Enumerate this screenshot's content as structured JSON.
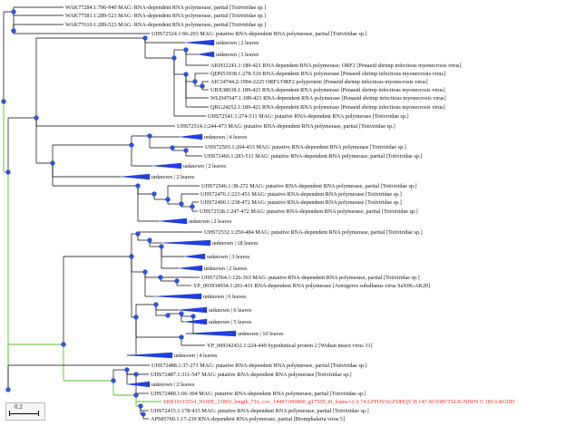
{
  "tree": {
    "colors": {
      "branch": "#000000",
      "highlight_branch": "#55c22a",
      "node": "#2a55e8",
      "highlight_label": "#ff2a2a"
    },
    "leaves": [
      {
        "label": "WAK77284.1:706-940 MAG: RNA-dependent RNA polymerase, partial [Totiviridae sp.]"
      },
      {
        "label": "WAK77581.1:289-523 MAG: RNA-dependent RNA polymerase, partial [Totiviridae sp.]"
      },
      {
        "label": "WAK77610.1:289-523 MAG: RNA-dependent RNA polymerase, partial [Totiviridae sp.]"
      },
      {
        "label": "UHS72524.1:66-293 MAG: putative RNA-dependent RNA polymerase, partial [Totiviridae sp.]"
      },
      {
        "label": "unknown | 2 leaves",
        "collapsed": true
      },
      {
        "label": "unknown | 5 leaves",
        "collapsed": true
      },
      {
        "label": "AKH32241.1:189-421 RNA dependent RNA polymerase; ORF2 [Penaeid shrimp infectious myonecrosis virus]"
      },
      {
        "label": "QDN53938.1:278-510 RNA-dependent RNA polymerase [Penaeid shrimp infectious myonecrosis virus]"
      },
      {
        "label": "AIC34744.2:1994-2225 ORF1/ORF2 polyprotein [Penaeid shrimp infectious myonecrosis virus]"
      },
      {
        "label": "UBX38638.1:189-421 RNA-dependent RNA polymerase [Penaeid shrimp infectious myonecrosis virus]"
      },
      {
        "label": "WLD47647.1:189-421 RNA-dependent RNA polymerase [Penaeid shrimp infectious myonecrosis virus]"
      },
      {
        "label": "QRG24252.1:189-421 RNA-dependent RNA polymerase [Penaeid shrimp infectious myonecrosis virus]"
      },
      {
        "label": "UHS72541.1:274-511 MAG: putative RNA-dependent RNA polymerase [Totiviridae sp.]"
      },
      {
        "label": "UHS72514.1:244-473 MAG: putative RNA-dependent RNA polymerase, partial [Totiviridae sp.]"
      },
      {
        "label": "unknown | 4 leaves",
        "collapsed": true
      },
      {
        "label": "UHS72503.1:204-433 MAG: putative RNA-dependent RNA polymerase [Totiviridae sp.]"
      },
      {
        "label": "UHS72466.1:283-511 MAG: putative RNA-dependent RNA polymerase, partial [Totiviridae sp.]"
      },
      {
        "label": "unknown | 2 leaves",
        "collapsed": true
      },
      {
        "label": "unknown | 2 leaves",
        "collapsed": true
      },
      {
        "label": "UHS72546.1:38-272 MAG: putative RNA-dependent RNA polymerase, partial [Totiviridae sp.]"
      },
      {
        "label": "UHS72476.1:223-451 MAG: putative RNA-dependent RNA polymerase [Totiviridae sp.]"
      },
      {
        "label": "UHS72490.1:238-472 MAG: putative RNA-dependent RNA polymerase [Totiviridae sp.]"
      },
      {
        "label": "UHS72538.1:247-472 MAG: putative RNA-dependent RNA polymerase, partial [Totiviridae sp.]"
      },
      {
        "label": "unknown | 2 leaves",
        "collapsed": true
      },
      {
        "label": "UHS72532.1:250-484 MAG: putative RNA-dependent RNA polymerase, partial [Totiviridae sp.]"
      },
      {
        "label": "unknown | 18 leaves",
        "collapsed": true
      },
      {
        "label": "unknown | 3 leaves",
        "collapsed": true
      },
      {
        "label": "unknown | 2 leaves",
        "collapsed": true
      },
      {
        "label": "UHS72564.1:126-363 MAG: putative RNA-dependent RNA polymerase, partial [Totiviridae sp.]"
      },
      {
        "label": "YP_003934934.1:201-431 RNA-dependent RNA polymerase [Armigeres subalbatus virus SaX06-AK20]"
      },
      {
        "label": "unknown | 6 leaves",
        "collapsed": true
      },
      {
        "label": "unknown | 6 leaves",
        "collapsed": true
      },
      {
        "label": "unknown | 5 leaves",
        "collapsed": true
      },
      {
        "label": "unknown | 10 leaves",
        "collapsed": true
      },
      {
        "label": "YP_009342432.1:224-449 hypothetical protein 2 [Wuhan insect virus 31]"
      },
      {
        "label": "unknown | 4 leaves",
        "collapsed": true
      },
      {
        "label": "UHS72488.1:37-271 MAG: putative RNA-dependent RNA polymerase, partial [Totiviridae sp.]"
      },
      {
        "label": "UHS72487.1:311-547 MAG: putative RNA-dependent RNA polymerase [Totiviridae sp.]"
      },
      {
        "label": "unknown | 2 leaves",
        "collapsed": true
      },
      {
        "label": "UHS72480.1:66-304 MAG: putative RNA-dependent RNA polymerase, partial [Totiviridae sp.]"
      },
      {
        "label": "SRR19115554_NODE_21893_length_716_cov_14497.996890_g17559_i0_frame=2 A 74:LPFDVAGFDHQV B 147-SGVRVTSLIGNIWN C 185-LRGDD",
        "highlight": true
      },
      {
        "label": "UHS72415.1:178-415 MAG: putative RNA-dependent RNA polymerase, partial [Totiviridae sp.]"
      },
      {
        "label": "APS85760.1:17-239 RNA-dependent RNA polymerase, partial [Biomphalaria virus 5]"
      }
    ]
  },
  "scale_bar": {
    "label": "0.2"
  }
}
